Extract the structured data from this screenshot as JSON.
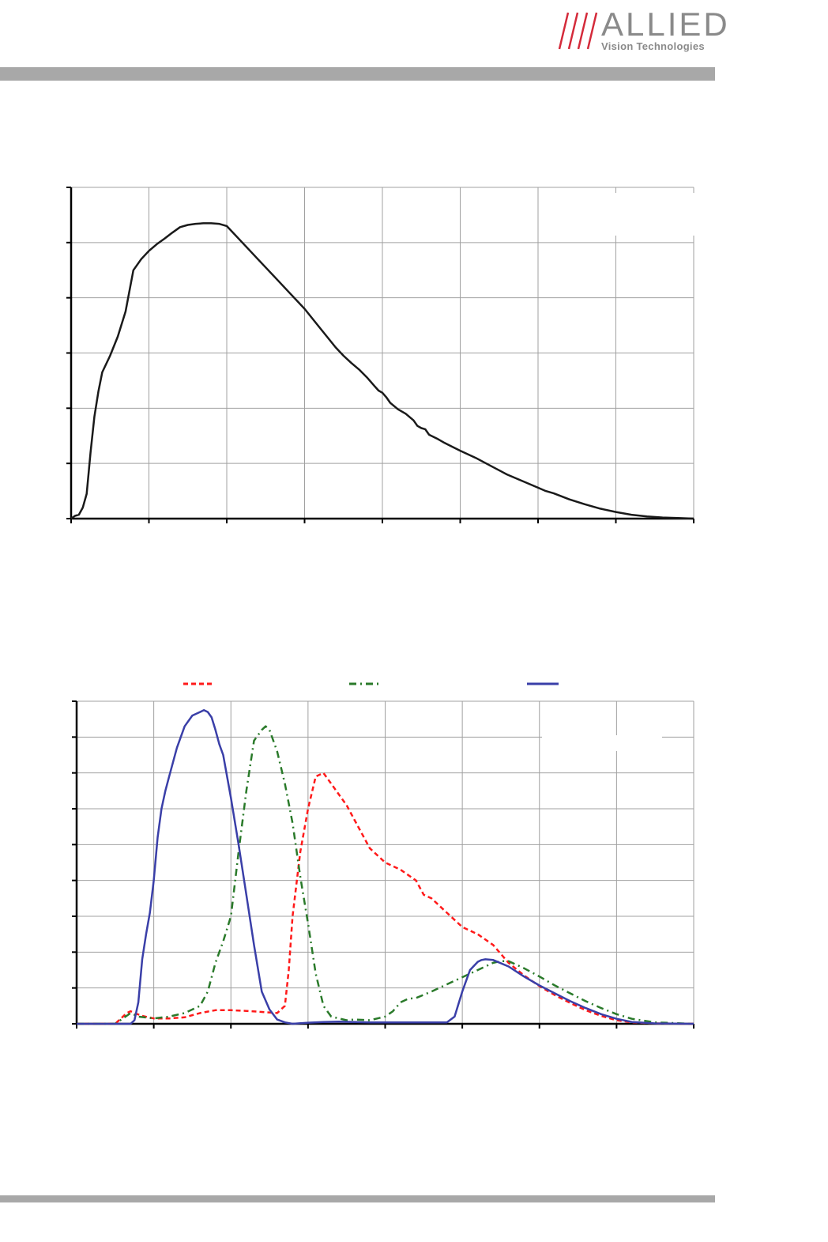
{
  "header": {
    "brand": "ALLIED",
    "subtitle": "Vision Technologies",
    "slash_color": "#d42a3a",
    "text_color": "#8a8a8a"
  },
  "chart_data": [
    {
      "type": "line",
      "grid": true,
      "xlim": [
        0,
        8
      ],
      "ylim": [
        0,
        6
      ],
      "x_ticks": 9,
      "y_ticks": 7,
      "series": [
        {
          "color": "#1a1a1a",
          "x": [
            0.0,
            0.05,
            0.1,
            0.15,
            0.2,
            0.25,
            0.3,
            0.35,
            0.4,
            0.5,
            0.6,
            0.7,
            0.8,
            0.9,
            1.0,
            1.1,
            1.2,
            1.3,
            1.4,
            1.5,
            1.6,
            1.7,
            1.8,
            1.9,
            2.0,
            2.2,
            2.4,
            2.6,
            2.8,
            3.0,
            3.2,
            3.4,
            3.5,
            3.6,
            3.7,
            3.8,
            3.9,
            3.95,
            4.0,
            4.05,
            4.1,
            4.2,
            4.3,
            4.4,
            4.45,
            4.5,
            4.55,
            4.6,
            4.7,
            4.8,
            4.9,
            5.0,
            5.2,
            5.4,
            5.6,
            5.8,
            6.0,
            6.1,
            6.2,
            6.4,
            6.6,
            6.8,
            7.0,
            7.2,
            7.4,
            7.6,
            7.8,
            8.0
          ],
          "y": [
            0.0,
            0.05,
            0.07,
            0.2,
            0.45,
            1.2,
            1.85,
            2.3,
            2.65,
            2.95,
            3.3,
            3.75,
            4.5,
            4.7,
            4.85,
            4.97,
            5.07,
            5.18,
            5.28,
            5.32,
            5.34,
            5.35,
            5.35,
            5.34,
            5.3,
            5.0,
            4.7,
            4.4,
            4.1,
            3.8,
            3.45,
            3.1,
            2.95,
            2.82,
            2.7,
            2.56,
            2.4,
            2.32,
            2.28,
            2.2,
            2.1,
            1.98,
            1.9,
            1.78,
            1.68,
            1.64,
            1.62,
            1.52,
            1.45,
            1.37,
            1.3,
            1.23,
            1.1,
            0.95,
            0.8,
            0.68,
            0.56,
            0.5,
            0.46,
            0.35,
            0.26,
            0.18,
            0.12,
            0.07,
            0.04,
            0.02,
            0.01,
            0.0
          ]
        }
      ]
    },
    {
      "type": "line",
      "grid": true,
      "xlim": [
        0,
        8
      ],
      "ylim": [
        0,
        9
      ],
      "x_ticks": 9,
      "y_ticks": 10,
      "series": [
        {
          "color": "#ff1a1a",
          "style": "dashed",
          "x": [
            0.0,
            0.5,
            0.6,
            0.65,
            0.7,
            0.75,
            0.85,
            1.0,
            1.2,
            1.4,
            1.6,
            1.8,
            2.0,
            2.2,
            2.4,
            2.6,
            2.7,
            2.75,
            2.8,
            2.9,
            3.0,
            3.1,
            3.2,
            3.3,
            3.4,
            3.5,
            3.6,
            3.7,
            3.8,
            3.9,
            4.0,
            4.2,
            4.4,
            4.5,
            4.6,
            4.8,
            5.0,
            5.2,
            5.4,
            5.5,
            5.6,
            5.8,
            6.0,
            6.2,
            6.4,
            6.6,
            6.8,
            7.0,
            7.2,
            7.5,
            8.0
          ],
          "y": [
            0.0,
            0.0,
            0.2,
            0.3,
            0.35,
            0.3,
            0.22,
            0.15,
            0.15,
            0.18,
            0.3,
            0.38,
            0.38,
            0.36,
            0.33,
            0.3,
            0.5,
            1.5,
            3.0,
            4.8,
            6.0,
            6.9,
            7.0,
            6.7,
            6.4,
            6.1,
            5.7,
            5.3,
            4.9,
            4.7,
            4.5,
            4.3,
            4.0,
            3.6,
            3.5,
            3.1,
            2.7,
            2.5,
            2.2,
            1.95,
            1.7,
            1.35,
            1.05,
            0.8,
            0.58,
            0.38,
            0.22,
            0.1,
            0.04,
            0.01,
            0.0
          ]
        },
        {
          "color": "#2a7a2a",
          "style": "dashdot",
          "x": [
            0.0,
            0.5,
            0.6,
            0.7,
            0.8,
            1.0,
            1.2,
            1.4,
            1.5,
            1.6,
            1.7,
            1.8,
            1.9,
            2.0,
            2.1,
            2.2,
            2.3,
            2.4,
            2.45,
            2.5,
            2.6,
            2.7,
            2.8,
            2.9,
            3.0,
            3.1,
            3.2,
            3.3,
            3.5,
            3.6,
            3.8,
            4.0,
            4.1,
            4.2,
            4.3,
            4.4,
            4.6,
            4.8,
            5.0,
            5.2,
            5.3,
            5.4,
            5.5,
            5.6,
            5.8,
            6.0,
            6.2,
            6.4,
            6.6,
            6.8,
            7.0,
            7.2,
            7.5,
            8.0
          ],
          "y": [
            0.0,
            0.0,
            0.15,
            0.3,
            0.2,
            0.15,
            0.2,
            0.3,
            0.4,
            0.5,
            0.9,
            1.7,
            2.3,
            3.0,
            4.8,
            6.5,
            7.9,
            8.2,
            8.3,
            8.2,
            7.6,
            6.7,
            5.6,
            4.1,
            2.8,
            1.4,
            0.5,
            0.2,
            0.1,
            0.12,
            0.1,
            0.2,
            0.35,
            0.6,
            0.7,
            0.72,
            0.9,
            1.1,
            1.3,
            1.5,
            1.6,
            1.7,
            1.75,
            1.75,
            1.55,
            1.32,
            1.07,
            0.85,
            0.63,
            0.44,
            0.27,
            0.14,
            0.04,
            0.0
          ]
        },
        {
          "color": "#3a3fa8",
          "style": "solid",
          "x": [
            0.0,
            0.7,
            0.75,
            0.8,
            0.85,
            0.9,
            0.95,
            1.0,
            1.05,
            1.1,
            1.15,
            1.2,
            1.3,
            1.4,
            1.5,
            1.55,
            1.6,
            1.65,
            1.7,
            1.75,
            1.8,
            1.85,
            1.9,
            2.0,
            2.1,
            2.2,
            2.3,
            2.4,
            2.5,
            2.6,
            2.7,
            2.8,
            3.0,
            3.2,
            3.4,
            3.6,
            3.8,
            4.0,
            4.2,
            4.4,
            4.6,
            4.8,
            4.9,
            5.0,
            5.1,
            5.2,
            5.25,
            5.3,
            5.4,
            5.6,
            5.8,
            6.0,
            6.2,
            6.4,
            6.6,
            6.8,
            7.0,
            7.2,
            7.5,
            8.0
          ],
          "y": [
            0.0,
            0.0,
            0.1,
            0.6,
            1.8,
            2.5,
            3.1,
            4.0,
            5.2,
            6.0,
            6.5,
            6.9,
            7.7,
            8.3,
            8.6,
            8.65,
            8.7,
            8.75,
            8.7,
            8.55,
            8.2,
            7.8,
            7.5,
            6.3,
            5.0,
            3.6,
            2.2,
            0.9,
            0.4,
            0.12,
            0.04,
            0.0,
            0.03,
            0.05,
            0.06,
            0.05,
            0.04,
            0.04,
            0.04,
            0.04,
            0.04,
            0.04,
            0.2,
            0.9,
            1.5,
            1.73,
            1.78,
            1.8,
            1.78,
            1.6,
            1.32,
            1.07,
            0.85,
            0.63,
            0.44,
            0.27,
            0.14,
            0.05,
            0.01,
            0.0
          ]
        }
      ],
      "legend": {
        "position": "top",
        "entries": 3
      }
    }
  ]
}
